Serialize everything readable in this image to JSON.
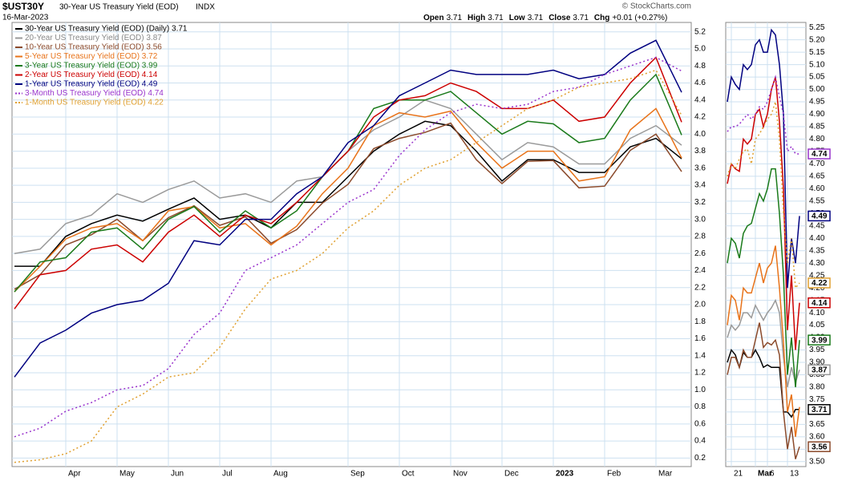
{
  "header": {
    "symbol": "$UST30Y",
    "name": "30-Year US Treasury Yield (EOD)",
    "exchange": "INDX",
    "date": "16-Mar-2023",
    "quote": [
      {
        "label": "Open",
        "value": 3.71
      },
      {
        "label": "High",
        "value": 3.71
      },
      {
        "label": "Low",
        "value": 3.71
      },
      {
        "label": "Close",
        "value": 3.71
      },
      {
        "label": "Chg",
        "value": "+0.01 (+0.27%)"
      }
    ],
    "credit": "© StockCharts.com"
  },
  "chart_data": [
    {
      "type": "line",
      "legend": "top-left",
      "grid": true,
      "categories": [
        null,
        null,
        "Apr",
        null,
        "May",
        null,
        "Jun",
        null,
        "Jul",
        null,
        "Aug",
        null,
        null,
        "Sep",
        null,
        "Oct",
        null,
        "Nov",
        null,
        "Dec",
        null,
        "2023",
        null,
        "Feb",
        null,
        "Mar",
        null
      ],
      "ylim": [
        0.1,
        5.31
      ],
      "yticks": [
        0.2,
        0.4,
        0.6,
        0.8,
        {
          "value": 1,
          "label": "1.0"
        },
        1.2,
        1.4,
        1.6,
        1.8,
        {
          "value": 2,
          "label": "2.0"
        },
        2.2,
        2.4,
        2.6,
        2.8,
        {
          "value": 3,
          "label": "3.0"
        },
        3.2,
        3.4,
        3.6,
        3.8,
        {
          "value": 4,
          "label": "4.0"
        },
        4.2,
        4.4,
        4.6,
        4.8,
        {
          "value": 5,
          "label": "5.0"
        },
        5.2
      ],
      "series": [
        {
          "name": "30-Year US Treasury Yield (EOD) (Daily) 3.71",
          "color": "#000000",
          "dash": false,
          "values": [
            2.45,
            2.45,
            2.8,
            2.95,
            3.05,
            2.98,
            3.12,
            3.25,
            3.0,
            3.05,
            2.9,
            3.2,
            3.2,
            3.5,
            3.8,
            4.0,
            4.15,
            4.1,
            3.8,
            3.45,
            3.7,
            3.7,
            3.55,
            3.55,
            3.85,
            3.95,
            3.71
          ]
        },
        {
          "name": "20-Year US Treasury Yield (EOD) 3.87",
          "color": "#9a9a9a",
          "dash": false,
          "values": [
            2.6,
            2.65,
            2.95,
            3.05,
            3.3,
            3.2,
            3.35,
            3.45,
            3.25,
            3.3,
            3.2,
            3.45,
            3.5,
            3.8,
            4.05,
            4.2,
            4.4,
            4.3,
            4.0,
            3.7,
            3.9,
            3.85,
            3.65,
            3.65,
            3.95,
            4.1,
            3.87
          ]
        },
        {
          "name": "10-Year US Treasury Yield (EOD) 3.56",
          "color": "#8b4a2b",
          "dash": false,
          "values": [
            2.18,
            2.35,
            2.7,
            2.82,
            3.0,
            2.75,
            3.02,
            3.16,
            2.93,
            3.03,
            2.72,
            2.88,
            3.19,
            3.41,
            3.83,
            3.95,
            4.02,
            4.13,
            3.7,
            3.42,
            3.68,
            3.69,
            3.37,
            3.39,
            3.81,
            4.0,
            3.56
          ]
        },
        {
          "name": "5-Year US Treasury Yield (EOD) 3.72",
          "color": "#e8731a",
          "dash": false,
          "values": [
            2.15,
            2.45,
            2.77,
            2.9,
            2.95,
            2.75,
            3.1,
            3.15,
            2.9,
            2.95,
            2.7,
            2.92,
            3.3,
            3.6,
            4.1,
            4.25,
            4.2,
            4.27,
            3.9,
            3.6,
            3.8,
            3.8,
            3.45,
            3.5,
            4.05,
            4.3,
            3.72
          ]
        },
        {
          "name": "3-Year US Treasury Yield (EOD) 3.99",
          "color": "#1a7a1a",
          "dash": false,
          "values": [
            2.15,
            2.5,
            2.55,
            2.85,
            2.9,
            2.65,
            3.0,
            3.15,
            2.85,
            3.1,
            2.9,
            3.1,
            3.5,
            3.8,
            4.3,
            4.4,
            4.4,
            4.5,
            4.25,
            4.0,
            4.15,
            4.12,
            3.9,
            3.95,
            4.4,
            4.7,
            3.99
          ]
        },
        {
          "name": "2-Year US Treasury Yield (EOD) 4.14",
          "color": "#cc0000",
          "dash": false,
          "values": [
            1.95,
            2.35,
            2.4,
            2.65,
            2.7,
            2.5,
            2.85,
            3.05,
            2.8,
            3.05,
            2.95,
            3.2,
            3.5,
            3.8,
            4.2,
            4.4,
            4.45,
            4.6,
            4.5,
            4.3,
            4.3,
            4.4,
            4.15,
            4.2,
            4.6,
            4.9,
            4.14
          ]
        },
        {
          "name": "1-Year US Treasury Yield (EOD) 4.49",
          "color": "#000080",
          "dash": false,
          "values": [
            1.15,
            1.55,
            1.7,
            1.9,
            2.0,
            2.05,
            2.25,
            2.75,
            2.7,
            3.0,
            3.0,
            3.3,
            3.5,
            3.9,
            4.1,
            4.45,
            4.6,
            4.75,
            4.7,
            4.7,
            4.7,
            4.75,
            4.65,
            4.7,
            4.95,
            5.1,
            4.49
          ]
        },
        {
          "name": "3-Month US Treasury Yield (EOD) 4.74",
          "color": "#9933cc",
          "dash": true,
          "values": [
            0.45,
            0.55,
            0.75,
            0.85,
            1.0,
            1.05,
            1.25,
            1.65,
            1.9,
            2.4,
            2.55,
            2.7,
            2.95,
            3.2,
            3.35,
            3.75,
            4.05,
            4.25,
            4.35,
            4.3,
            4.35,
            4.5,
            4.55,
            4.7,
            4.8,
            4.9,
            4.74
          ]
        },
        {
          "name": "1-Month US Treasury Yield (EOD) 4.22",
          "color": "#e0a030",
          "dash": true,
          "values": [
            0.15,
            0.18,
            0.25,
            0.4,
            0.8,
            0.95,
            1.15,
            1.2,
            1.5,
            1.95,
            2.3,
            2.4,
            2.6,
            2.9,
            3.1,
            3.4,
            3.6,
            3.7,
            3.9,
            4.1,
            4.3,
            4.4,
            4.55,
            4.6,
            4.65,
            4.75,
            4.22
          ]
        }
      ]
    },
    {
      "type": "line",
      "grid": true,
      "categories": [
        null,
        "21",
        null,
        null,
        null,
        null,
        null,
        "Mar",
        null,
        null,
        "6",
        null,
        null,
        null,
        null,
        "13",
        null,
        null,
        null
      ],
      "ylim": [
        3.48,
        5.27
      ],
      "yticks": [
        {
          "value": 3.5,
          "label": "3.50"
        },
        3.55,
        {
          "value": 3.6,
          "label": "3.60"
        },
        3.65,
        {
          "value": 3.7,
          "label": "3.70"
        },
        3.75,
        {
          "value": 3.8,
          "label": "3.80"
        },
        3.85,
        {
          "value": 3.9,
          "label": "3.90"
        },
        3.95,
        {
          "value": 4,
          "label": "4.00"
        },
        4.05,
        {
          "value": 4.1,
          "label": "4.10"
        },
        4.15,
        {
          "value": 4.2,
          "label": "4.20"
        },
        4.25,
        {
          "value": 4.3,
          "label": "4.30"
        },
        4.35,
        {
          "value": 4.4,
          "label": "4.40"
        },
        4.45,
        {
          "value": 4.5,
          "label": "4.50"
        },
        4.55,
        {
          "value": 4.6,
          "label": "4.60"
        },
        4.65,
        {
          "value": 4.7,
          "label": "4.70"
        },
        4.75,
        {
          "value": 4.8,
          "label": "4.80"
        },
        4.85,
        {
          "value": 4.9,
          "label": "4.90"
        },
        4.95,
        {
          "value": 5,
          "label": "5.00"
        },
        5.05,
        {
          "value": 5.1,
          "label": "5.10"
        },
        5.15,
        {
          "value": 5.2,
          "label": "5.20"
        },
        5.25
      ],
      "series": [
        {
          "color": "#000000",
          "dash": false,
          "show_last_label": true,
          "values": [
            3.9,
            3.95,
            3.93,
            3.88,
            3.94,
            3.92,
            3.92,
            3.95,
            3.92,
            3.88,
            3.89,
            3.88,
            3.88,
            3.88,
            3.7,
            3.7,
            3.68,
            3.71,
            3.71
          ]
        },
        {
          "color": "#9a9a9a",
          "dash": false,
          "show_last_label": true,
          "values": [
            4.0,
            4.05,
            4.03,
            4.05,
            4.1,
            4.1,
            4.08,
            4.13,
            4.1,
            4.07,
            4.1,
            4.12,
            4.15,
            4.1,
            3.92,
            3.8,
            3.88,
            3.82,
            3.87
          ]
        },
        {
          "color": "#8b4a2b",
          "dash": false,
          "show_last_label": true,
          "values": [
            3.85,
            3.92,
            3.92,
            3.88,
            3.95,
            3.92,
            3.92,
            3.99,
            4.06,
            3.96,
            3.98,
            3.97,
            3.99,
            3.93,
            3.7,
            3.55,
            3.64,
            3.51,
            3.56
          ]
        },
        {
          "color": "#e8731a",
          "dash": false,
          "show_last_label": false,
          "values": [
            4.05,
            4.17,
            4.15,
            4.07,
            4.2,
            4.18,
            4.18,
            4.24,
            4.3,
            4.22,
            4.28,
            4.3,
            4.37,
            4.2,
            3.98,
            3.7,
            3.77,
            3.6,
            3.72
          ]
        },
        {
          "color": "#1a7a1a",
          "dash": false,
          "show_last_label": true,
          "values": [
            4.3,
            4.4,
            4.38,
            4.32,
            4.42,
            4.45,
            4.46,
            4.52,
            4.58,
            4.55,
            4.6,
            4.68,
            4.68,
            4.5,
            4.25,
            3.85,
            4.0,
            3.8,
            3.99
          ]
        },
        {
          "color": "#cc0000",
          "dash": false,
          "show_last_label": true,
          "values": [
            4.62,
            4.7,
            4.68,
            4.67,
            4.8,
            4.78,
            4.8,
            4.9,
            4.92,
            4.85,
            4.9,
            5.0,
            5.05,
            4.87,
            4.6,
            4.03,
            4.25,
            3.95,
            4.14
          ]
        },
        {
          "color": "#000080",
          "dash": false,
          "show_last_label": true,
          "values": [
            4.95,
            5.05,
            5.02,
            5.0,
            5.1,
            5.08,
            5.1,
            5.18,
            5.2,
            5.15,
            5.15,
            5.24,
            5.22,
            5.1,
            4.9,
            4.2,
            4.4,
            4.3,
            4.49
          ]
        },
        {
          "color": "#9933cc",
          "dash": true,
          "show_last_label": true,
          "values": [
            4.83,
            4.85,
            4.85,
            4.86,
            4.88,
            4.9,
            4.88,
            4.9,
            4.93,
            4.92,
            4.95,
            5.0,
            5.05,
            4.97,
            4.9,
            4.75,
            4.77,
            4.74,
            4.74
          ]
        },
        {
          "color": "#e0a030",
          "dash": true,
          "show_last_label": true,
          "values": [
            4.65,
            4.7,
            4.68,
            4.72,
            4.75,
            4.76,
            4.7,
            4.8,
            4.82,
            4.85,
            4.88,
            4.9,
            4.95,
            4.8,
            4.5,
            4.3,
            4.4,
            4.2,
            4.22
          ]
        }
      ]
    }
  ]
}
